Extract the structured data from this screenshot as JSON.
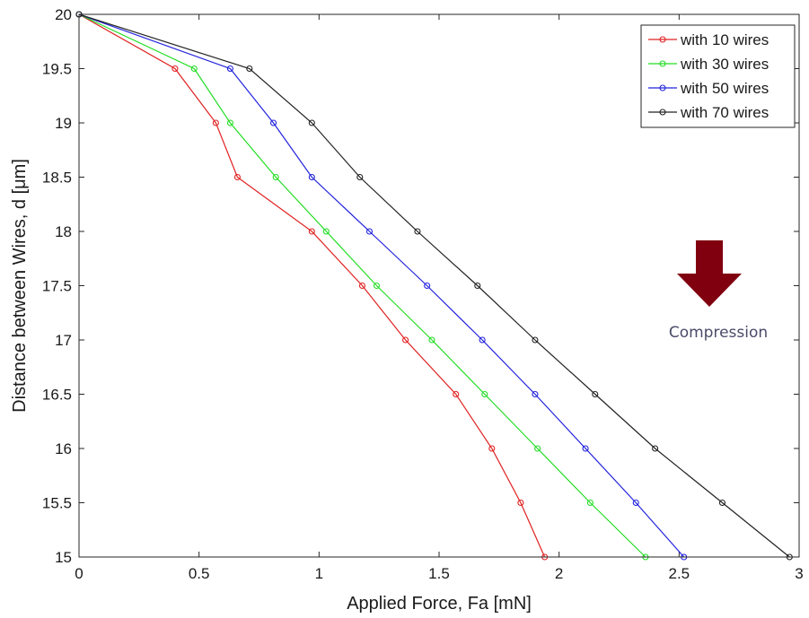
{
  "chart_data": {
    "type": "line",
    "title": "",
    "xlabel": "Applied Force, Fa [mN]",
    "ylabel": "Distance between Wires, d [μm]",
    "xlim": [
      0,
      3
    ],
    "ylim": [
      15,
      20
    ],
    "xticks": [
      "0",
      "0.5",
      "1",
      "1.5",
      "2",
      "2.5",
      "3"
    ],
    "yticks": [
      "15",
      "15.5",
      "16",
      "16.5",
      "17",
      "17.5",
      "18",
      "18.5",
      "19",
      "19.5",
      "20"
    ],
    "grid": false,
    "legend_position": "top-right",
    "series": [
      {
        "name": "with 10 wires",
        "color": "#e02020",
        "x": [
          0,
          0.4,
          0.57,
          0.66,
          0.97,
          1.18,
          1.36,
          1.57,
          1.72,
          1.84,
          1.94
        ],
        "y": [
          20,
          19.5,
          19,
          18.5,
          18,
          17.5,
          17,
          16.5,
          16,
          15.5,
          15
        ]
      },
      {
        "name": "with 30 wires",
        "color": "#22dd22",
        "x": [
          0,
          0.48,
          0.63,
          0.82,
          1.03,
          1.24,
          1.47,
          1.69,
          1.91,
          2.13,
          2.36
        ],
        "y": [
          20,
          19.5,
          19,
          18.5,
          18,
          17.5,
          17,
          16.5,
          16,
          15.5,
          15
        ]
      },
      {
        "name": "with 50 wires",
        "color": "#2222dd",
        "x": [
          0,
          0.63,
          0.81,
          0.97,
          1.21,
          1.45,
          1.68,
          1.9,
          2.11,
          2.32,
          2.52
        ],
        "y": [
          20,
          19.5,
          19,
          18.5,
          18,
          17.5,
          17,
          16.5,
          16,
          15.5,
          15
        ]
      },
      {
        "name": "with 70 wires",
        "color": "#222222",
        "x": [
          0,
          0.71,
          0.97,
          1.17,
          1.41,
          1.66,
          1.9,
          2.15,
          2.4,
          2.68,
          2.96
        ],
        "y": [
          20,
          19.5,
          19,
          18.5,
          18,
          17.5,
          17,
          16.5,
          16,
          15.5,
          15
        ]
      }
    ],
    "annotation": {
      "text": "Compression",
      "arrow_color": "#800010",
      "arrow_direction": "down"
    }
  }
}
